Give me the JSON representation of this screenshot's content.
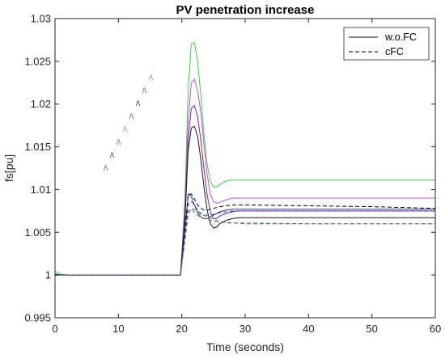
{
  "chart_data": {
    "type": "line",
    "title": "PV penetration increase",
    "xlabel": "Time (seconds)",
    "ylabel": "fs[pu]",
    "xlim": [
      0,
      60
    ],
    "ylim": [
      0.995,
      1.03
    ],
    "xticks": [
      0,
      10,
      20,
      30,
      40,
      50,
      60
    ],
    "xtick_labels": [
      "0",
      "10",
      "20",
      "30",
      "40",
      "50",
      "60"
    ],
    "yticks": [
      0.995,
      1,
      1.005,
      1.01,
      1.015,
      1.02,
      1.025,
      1.03
    ],
    "ytick_labels": [
      "0.995",
      "1",
      "1.005",
      "1.01",
      "1.015",
      "1.02",
      "1.025",
      "1.03"
    ],
    "grid": false,
    "legend_position": "top-right",
    "legend": [
      {
        "label": "w.o.FC",
        "style": "solid",
        "color": "#000000"
      },
      {
        "label": "cFC",
        "style": "dashed",
        "color": "#000000"
      }
    ],
    "series": [
      {
        "color": "#36d836",
        "style": "solid",
        "x": [
          0,
          0.3,
          1,
          2,
          5,
          10,
          15,
          19.8,
          20.5,
          21,
          21.5,
          22,
          22.5,
          23,
          23.5,
          24,
          24.5,
          25,
          25.5,
          26,
          27,
          28,
          29,
          30,
          40,
          50,
          60
        ],
        "y": [
          1.0005,
          1.0003,
          1.0001,
          1.0,
          1.0,
          1.0,
          1.0,
          1.0,
          1.009,
          1.0215,
          1.027,
          1.0272,
          1.025,
          1.021,
          1.0165,
          1.013,
          1.011,
          1.0103,
          1.0103,
          1.0106,
          1.011,
          1.0111,
          1.0111,
          1.0111,
          1.0111,
          1.0111,
          1.0111
        ]
      },
      {
        "color": "#c94fe0",
        "style": "solid",
        "x": [
          0,
          1,
          2,
          5,
          10,
          15,
          19.8,
          20.5,
          21,
          21.5,
          22,
          22.5,
          23,
          23.5,
          24,
          24.5,
          25,
          25.5,
          26,
          27,
          28,
          29,
          30,
          40,
          50,
          60
        ],
        "y": [
          1.0001,
          1.0,
          1.0,
          1.0,
          1.0,
          1.0,
          1.0,
          1.008,
          1.018,
          1.0225,
          1.0229,
          1.0215,
          1.019,
          1.0152,
          1.0118,
          1.0095,
          1.0086,
          1.0084,
          1.0085,
          1.0088,
          1.009,
          1.009,
          1.009,
          1.009,
          1.009,
          1.009
        ]
      },
      {
        "color": "#7a1fa0",
        "style": "solid",
        "x": [
          0,
          1,
          2,
          5,
          10,
          15,
          19.8,
          20.5,
          21,
          21.5,
          22,
          22.5,
          23,
          23.5,
          24,
          24.5,
          25,
          25.5,
          26,
          27,
          28,
          29,
          30,
          40,
          50,
          60
        ],
        "y": [
          1.0001,
          1.0,
          1.0,
          1.0,
          1.0,
          1.0,
          1.0,
          1.007,
          1.0158,
          1.0195,
          1.0198,
          1.0185,
          1.0158,
          1.0124,
          1.0094,
          1.0074,
          1.0066,
          1.0066,
          1.0069,
          1.0072,
          1.0074,
          1.0075,
          1.0075,
          1.0075,
          1.0075,
          1.0075
        ]
      },
      {
        "color": "#1a1a1a",
        "style": "solid",
        "x": [
          0,
          1,
          2,
          5,
          10,
          15,
          19.8,
          20.5,
          21,
          21.5,
          22,
          22.5,
          23,
          23.5,
          24,
          24.5,
          25,
          25.5,
          26,
          27,
          28,
          29,
          30,
          40,
          50,
          60
        ],
        "y": [
          1.0001,
          1.0,
          1.0,
          1.0,
          1.0,
          1.0,
          1.0,
          1.0065,
          1.0145,
          1.0172,
          1.0174,
          1.0162,
          1.0135,
          1.0103,
          1.0076,
          1.006,
          1.0055,
          1.0056,
          1.006,
          1.0064,
          1.0066,
          1.0067,
          1.0067,
          1.0067,
          1.0067,
          1.0067
        ]
      },
      {
        "color": "#2a3a9a",
        "style": "solid",
        "x": [
          0,
          1,
          2,
          5,
          10,
          15,
          19.8,
          20.5,
          21,
          21.5,
          22,
          22.5,
          23,
          23.5,
          24,
          24.5,
          25,
          25.5,
          26,
          27,
          28,
          29,
          30,
          40,
          50,
          60
        ],
        "y": [
          1.0001,
          1.0,
          1.0,
          1.0,
          1.0,
          1.0,
          1.0,
          1.005,
          1.0095,
          1.0092,
          1.0082,
          1.0073,
          1.0068,
          1.0066,
          1.0066,
          1.0068,
          1.007,
          1.0072,
          1.0074,
          1.0076,
          1.0077,
          1.0077,
          1.0077,
          1.0077,
          1.0077,
          1.0077
        ]
      },
      {
        "color": "#000000",
        "style": "dashed",
        "x": [
          0,
          2,
          5,
          10,
          15,
          19.8,
          20.5,
          21,
          21.5,
          22,
          22.5,
          23,
          23.5,
          24,
          25,
          26,
          27,
          28,
          30,
          40,
          50,
          60
        ],
        "y": [
          1.0,
          1.0,
          1.0,
          1.0,
          1.0,
          1.0,
          1.0055,
          1.0093,
          1.0095,
          1.0089,
          1.0082,
          1.0078,
          1.0076,
          1.0076,
          1.0078,
          1.008,
          1.0081,
          1.0082,
          1.0082,
          1.0081,
          1.008,
          1.0078
        ]
      },
      {
        "color": "#4a3aa0",
        "style": "dashed",
        "x": [
          0,
          2,
          5,
          10,
          15,
          19.8,
          20.5,
          21,
          21.5,
          22,
          22.5,
          23,
          23.5,
          24,
          25,
          26,
          27,
          28,
          30,
          40,
          50,
          60
        ],
        "y": [
          1.0,
          1.0,
          1.0,
          1.0,
          1.0,
          1.0,
          1.0048,
          1.0083,
          1.0086,
          1.0082,
          1.0076,
          1.0072,
          1.007,
          1.007,
          1.0071,
          1.0073,
          1.0074,
          1.0075,
          1.0075,
          1.0075,
          1.0075,
          1.0075
        ]
      },
      {
        "color": "#3cb83c",
        "style": "dashed",
        "x": [
          0,
          2,
          5,
          10,
          15,
          19.8,
          20.5,
          21,
          21.5,
          22,
          22.5,
          23,
          24,
          25,
          26,
          27,
          28,
          30,
          40,
          50,
          60
        ],
        "y": [
          1.0,
          1.0,
          1.0,
          1.0,
          1.0,
          1.0,
          1.004,
          1.007,
          1.0078,
          1.0077,
          1.0074,
          1.0071,
          1.0068,
          1.0065,
          1.0063,
          1.0062,
          1.0061,
          1.0061,
          1.006,
          1.006,
          1.006
        ]
      },
      {
        "color": "#7a4aa8",
        "style": "dashed",
        "x": [
          0,
          2,
          5,
          10,
          15,
          19.8,
          20.5,
          21,
          21.5,
          22,
          22.5,
          23,
          24,
          25,
          26,
          27,
          28,
          30,
          40,
          50,
          60
        ],
        "y": [
          1.0,
          1.0,
          1.0,
          1.0,
          1.0,
          1.0,
          1.0043,
          1.0074,
          1.0077,
          1.0074,
          1.007,
          1.0067,
          1.0065,
          1.0063,
          1.0062,
          1.0061,
          1.0061,
          1.006,
          1.006,
          1.006,
          1.006
        ]
      }
    ]
  },
  "decorations": {
    "labels": [
      {
        "text": "/\\",
        "color": "#c94fe0"
      },
      {
        "text": "/\\",
        "color": "#7a1fa0"
      },
      {
        "text": "/\\",
        "color": "#1a1a1a"
      },
      {
        "text": "/\\",
        "color": "#2a3a9a"
      },
      {
        "text": "/\\",
        "color": "#c94fe0"
      },
      {
        "text": "/\\",
        "color": "#7a1fa0"
      },
      {
        "text": "/\\",
        "color": "#1a1a1a"
      },
      {
        "text": "/\\",
        "color": "#2a3a9a"
      },
      {
        "text": "/\\",
        "color": "#c94fe0"
      },
      {
        "text": "/\\",
        "color": "#7a1fa0"
      }
    ]
  }
}
